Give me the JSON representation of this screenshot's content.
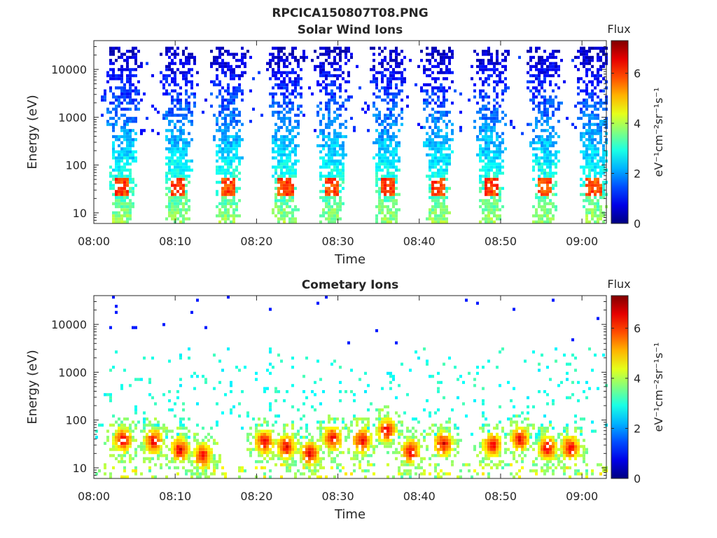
{
  "figure_title": "RPCICA150807T08.PNG",
  "chart_data": [
    {
      "type": "heatmap",
      "title": "Solar Wind Ions",
      "xlabel": "Time",
      "ylabel": "Energy (eV)",
      "x_ticks": [
        "08:00",
        "08:10",
        "08:20",
        "08:30",
        "08:40",
        "08:50",
        "09:00"
      ],
      "xlim": [
        "08:00",
        "09:03"
      ],
      "y_scale": "log",
      "y_ticks": [
        "10",
        "100",
        "1000",
        "10000"
      ],
      "ylim": [
        6,
        40000
      ],
      "colorbar": {
        "label": "Flux",
        "unit": "eV⁻¹cm⁻²sr⁻¹s⁻¹",
        "ticks": [
          "0",
          "2",
          "4",
          "6"
        ],
        "range": [
          0,
          7.3
        ],
        "colormap": "jet"
      },
      "sweeps_minutes": [
        3.4,
        10.2,
        16.3,
        23.4,
        29.1,
        35.9,
        42.2,
        48.6,
        55.3,
        61.3
      ],
      "sweep_features": {
        "energy_range": [
          6,
          30000
        ],
        "peak_energy": 35,
        "peak_flux": 5.5
      }
    },
    {
      "type": "heatmap",
      "title": "Cometary Ions",
      "xlabel": "Time",
      "ylabel": "Energy (eV)",
      "x_ticks": [
        "08:00",
        "08:10",
        "08:20",
        "08:30",
        "08:40",
        "08:50",
        "09:00"
      ],
      "xlim": [
        "08:00",
        "09:03"
      ],
      "y_scale": "log",
      "y_ticks": [
        "10",
        "100",
        "1000",
        "10000"
      ],
      "ylim": [
        6,
        40000
      ],
      "colorbar": {
        "label": "Flux",
        "unit": "eV⁻¹cm⁻²sr⁻¹s⁻¹",
        "ticks": [
          "0",
          "2",
          "4",
          "6"
        ],
        "range": [
          0,
          7.3
        ],
        "colormap": "jet"
      },
      "hot_blobs": [
        {
          "t": 3.4,
          "e": 38
        },
        {
          "t": 7.2,
          "e": 36
        },
        {
          "t": 10.4,
          "e": 24
        },
        {
          "t": 13.2,
          "e": 18
        },
        {
          "t": 20.8,
          "e": 35
        },
        {
          "t": 23.5,
          "e": 27
        },
        {
          "t": 26.4,
          "e": 20
        },
        {
          "t": 29.2,
          "e": 42
        },
        {
          "t": 32.8,
          "e": 38
        },
        {
          "t": 35.8,
          "e": 60
        },
        {
          "t": 38.8,
          "e": 22
        },
        {
          "t": 42.8,
          "e": 32
        },
        {
          "t": 48.8,
          "e": 30
        },
        {
          "t": 52.2,
          "e": 40
        },
        {
          "t": 55.6,
          "e": 26
        },
        {
          "t": 58.4,
          "e": 26
        }
      ],
      "scatter_energy_range": [
        40,
        3000
      ]
    }
  ]
}
